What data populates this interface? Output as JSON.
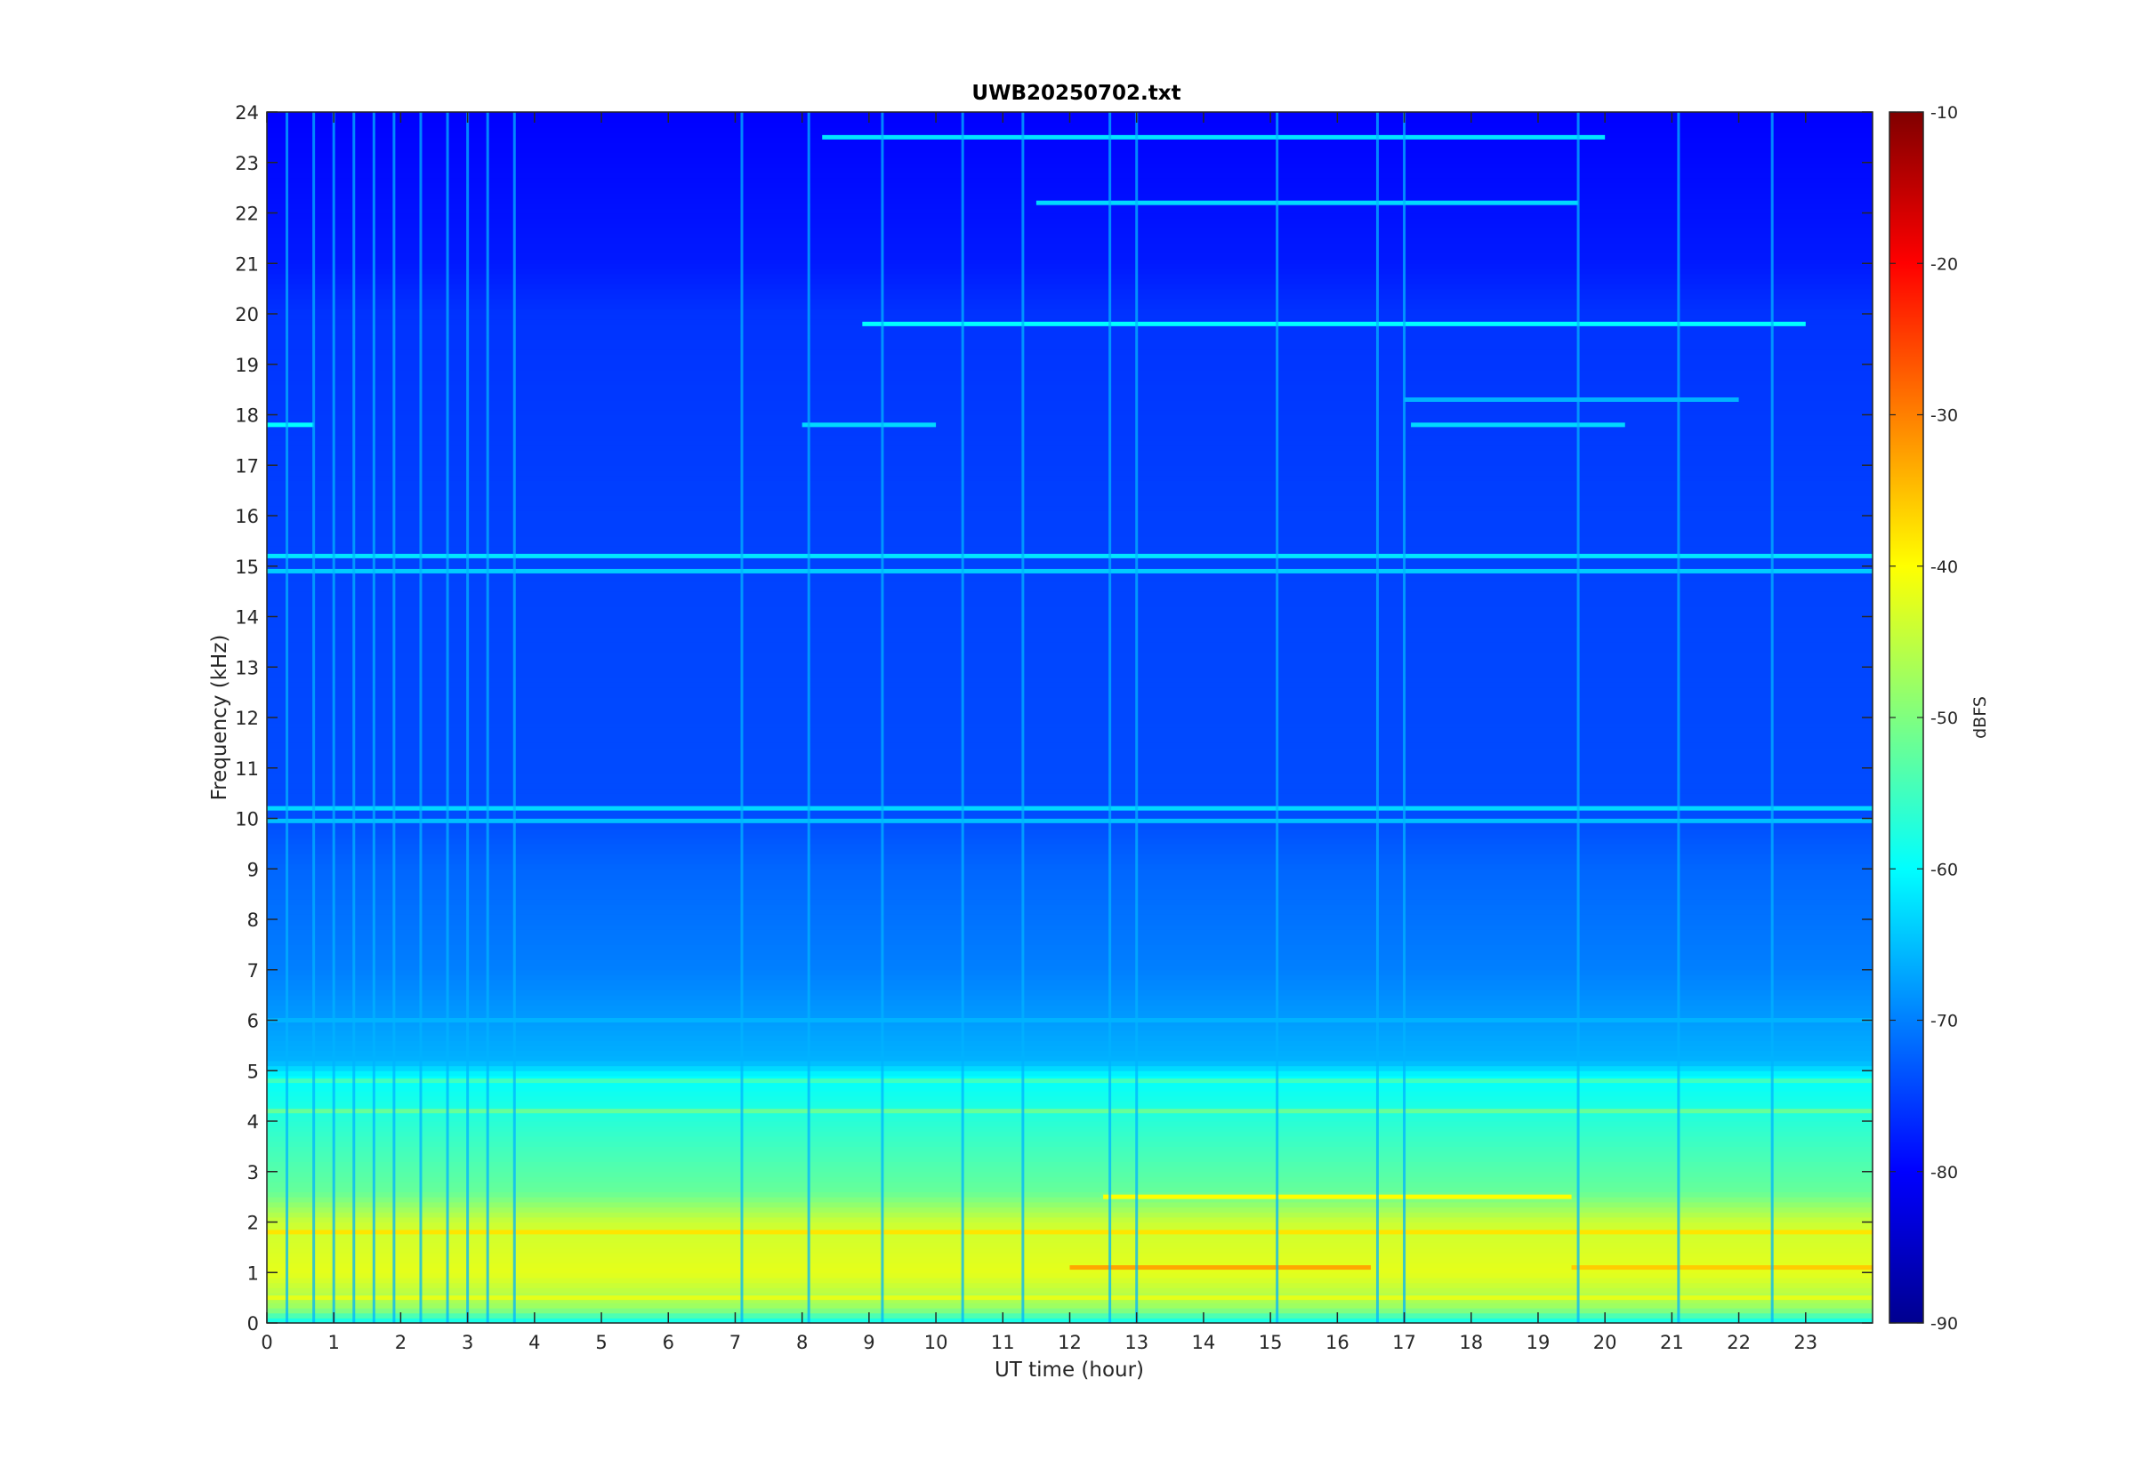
{
  "chart_data": {
    "type": "heatmap",
    "title": "UWB20250702.txt",
    "xlabel": "UT time (hour)",
    "ylabel": "Frequency (kHz)",
    "xlim": [
      0,
      24
    ],
    "ylim": [
      0,
      24
    ],
    "x_ticks": [
      "0",
      "1",
      "2",
      "3",
      "4",
      "5",
      "6",
      "7",
      "8",
      "9",
      "10",
      "11",
      "12",
      "13",
      "14",
      "15",
      "16",
      "17",
      "18",
      "19",
      "20",
      "21",
      "22",
      "23"
    ],
    "y_ticks": [
      "0",
      "1",
      "2",
      "3",
      "4",
      "5",
      "6",
      "7",
      "8",
      "9",
      "10",
      "11",
      "12",
      "13",
      "14",
      "15",
      "16",
      "17",
      "18",
      "19",
      "20",
      "21",
      "22",
      "23",
      "24"
    ],
    "colormap": "jet",
    "colorbar": {
      "label": "dBFS",
      "range": [
        -90,
        -10
      ],
      "ticks": [
        "-10",
        "-20",
        "-30",
        "-40",
        "-50",
        "-60",
        "-70",
        "-80",
        "-90"
      ]
    },
    "baseline_level_by_frequency_khz": [
      {
        "f": 0.0,
        "dbfs": -60
      },
      {
        "f": 0.3,
        "dbfs": -48
      },
      {
        "f": 1.0,
        "dbfs": -42
      },
      {
        "f": 2.0,
        "dbfs": -44
      },
      {
        "f": 2.6,
        "dbfs": -52
      },
      {
        "f": 3.5,
        "dbfs": -55
      },
      {
        "f": 4.9,
        "dbfs": -60
      },
      {
        "f": 5.2,
        "dbfs": -66
      },
      {
        "f": 7.0,
        "dbfs": -70
      },
      {
        "f": 9.0,
        "dbfs": -72
      },
      {
        "f": 10.0,
        "dbfs": -74
      },
      {
        "f": 16.0,
        "dbfs": -75
      },
      {
        "f": 20.0,
        "dbfs": -76
      },
      {
        "f": 21.0,
        "dbfs": -78
      },
      {
        "f": 24.0,
        "dbfs": -80
      }
    ],
    "narrowband_lines": [
      {
        "freq_khz": 19.8,
        "t_start": 8.9,
        "t_end": 23.0,
        "dbfs": -60
      },
      {
        "freq_khz": 22.2,
        "t_start": 11.5,
        "t_end": 19.6,
        "dbfs": -63
      },
      {
        "freq_khz": 23.5,
        "t_start": 8.3,
        "t_end": 20.0,
        "dbfs": -62
      },
      {
        "freq_khz": 17.8,
        "t_start": 0.0,
        "t_end": 0.7,
        "dbfs": -60
      },
      {
        "freq_khz": 17.8,
        "t_start": 8.0,
        "t_end": 10.0,
        "dbfs": -63
      },
      {
        "freq_khz": 17.8,
        "t_start": 17.1,
        "t_end": 20.3,
        "dbfs": -63
      },
      {
        "freq_khz": 18.3,
        "t_start": 17.0,
        "t_end": 22.0,
        "dbfs": -66
      },
      {
        "freq_khz": 15.2,
        "t_start": 0.0,
        "t_end": 24.0,
        "dbfs": -62
      },
      {
        "freq_khz": 14.9,
        "t_start": 0.0,
        "t_end": 24.0,
        "dbfs": -64
      },
      {
        "freq_khz": 10.2,
        "t_start": 0.0,
        "t_end": 24.0,
        "dbfs": -63
      },
      {
        "freq_khz": 9.95,
        "t_start": 0.0,
        "t_end": 24.0,
        "dbfs": -65
      },
      {
        "freq_khz": 6.0,
        "t_start": 0.0,
        "t_end": 24.0,
        "dbfs": -66
      },
      {
        "freq_khz": 4.8,
        "t_start": 0.0,
        "t_end": 24.0,
        "dbfs": -55
      },
      {
        "freq_khz": 4.2,
        "t_start": 0.0,
        "t_end": 24.0,
        "dbfs": -52
      },
      {
        "freq_khz": 2.5,
        "t_start": 12.5,
        "t_end": 19.5,
        "dbfs": -40
      },
      {
        "freq_khz": 1.8,
        "t_start": 0.0,
        "t_end": 24.0,
        "dbfs": -38
      },
      {
        "freq_khz": 1.1,
        "t_start": 12.0,
        "t_end": 16.5,
        "dbfs": -33
      },
      {
        "freq_khz": 1.1,
        "t_start": 19.5,
        "t_end": 24.0,
        "dbfs": -36
      },
      {
        "freq_khz": 0.5,
        "t_start": 0.0,
        "t_end": 24.0,
        "dbfs": -42
      }
    ],
    "broadband_impulses_hour": [
      0.3,
      0.7,
      1.0,
      1.3,
      1.6,
      1.9,
      2.3,
      2.7,
      3.0,
      3.3,
      3.7,
      7.1,
      8.1,
      9.2,
      10.4,
      11.3,
      12.6,
      13.0,
      15.1,
      16.6,
      17.0,
      19.6,
      21.1,
      22.5
    ]
  }
}
